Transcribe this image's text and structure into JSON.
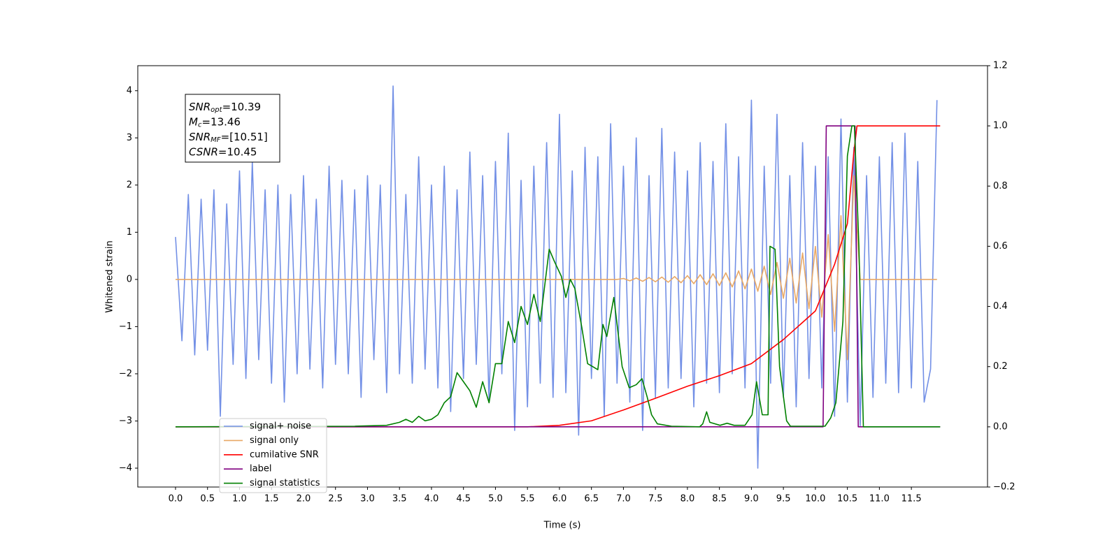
{
  "chart_data": {
    "type": "line",
    "xlabel": "Time (s)",
    "ylabel": "Whitened strain",
    "xlim": [
      -0.59,
      12.69
    ],
    "ylim": [
      -4.4,
      4.53
    ],
    "y2lim": [
      -0.2,
      1.2
    ],
    "xticks": [
      {
        "value": 0,
        "label": "0.0"
      },
      0.5,
      {
        "value": 1,
        "label": "1.0"
      },
      1.5,
      {
        "value": 2,
        "label": "2.0"
      },
      2.5,
      {
        "value": 3,
        "label": "3.0"
      },
      3.5,
      {
        "value": 4,
        "label": "4.0"
      },
      4.5,
      {
        "value": 5,
        "label": "5.0"
      },
      5.5,
      {
        "value": 6,
        "label": "6.0"
      },
      6.5,
      {
        "value": 7,
        "label": "7.0"
      },
      7.5,
      {
        "value": 8,
        "label": "8.0"
      },
      8.5,
      {
        "value": 9,
        "label": "9.0"
      },
      9.5,
      {
        "value": 10,
        "label": "10.0"
      },
      10.5,
      {
        "value": 11,
        "label": "11.0"
      },
      11.5
    ],
    "yticks": [
      {
        "value": -4,
        "label": "−4"
      },
      {
        "value": -3,
        "label": "−3"
      },
      {
        "value": -2,
        "label": "−2"
      },
      {
        "value": -1,
        "label": "−1"
      },
      0,
      1,
      2,
      3,
      4
    ],
    "y2ticks": [
      {
        "value": -0.2,
        "label": "−0.2"
      },
      {
        "value": 0,
        "label": "0.0"
      },
      0.2,
      0.4,
      0.6,
      0.8,
      {
        "value": 1,
        "label": "1.0"
      },
      1.2
    ],
    "legend": "lower left",
    "annotation": [
      {
        "symbol": "SNR",
        "subscript": "opt",
        "rest": "=10.39"
      },
      {
        "symbol": "M",
        "subscript": "c",
        "rest": "=13.46"
      },
      {
        "symbol": "SNR",
        "subscript": "MF",
        "rest": "=[10.51]"
      },
      {
        "symbol": "CSNR",
        "subscript": null,
        "rest": "=10.45"
      }
    ],
    "x": [
      0,
      0.1,
      0.2,
      0.3,
      0.4,
      0.5,
      0.6,
      0.7,
      0.8,
      0.9,
      1,
      1.1,
      1.2,
      1.3,
      1.4,
      1.5,
      1.6,
      1.7,
      1.8,
      1.9,
      2,
      2.1,
      2.2,
      2.3,
      2.4,
      2.5,
      2.6,
      2.7,
      2.8,
      2.9,
      3,
      3.1,
      3.2,
      3.3,
      3.4,
      3.5,
      3.6,
      3.7,
      3.8,
      3.9,
      4,
      4.1,
      4.2,
      4.3,
      4.4,
      4.5,
      4.6,
      4.7,
      4.8,
      4.9,
      5,
      5.1,
      5.2,
      5.3,
      5.4,
      5.5,
      5.6,
      5.7,
      5.8,
      5.9,
      6,
      6.1,
      6.2,
      6.3,
      6.4,
      6.5,
      6.6,
      6.7,
      6.8,
      6.9,
      7,
      7.1,
      7.2,
      7.3,
      7.4,
      7.5,
      7.6,
      7.7,
      7.8,
      7.9,
      8,
      8.1,
      8.2,
      8.3,
      8.4,
      8.5,
      8.6,
      8.7,
      8.8,
      8.9,
      9,
      9.1,
      9.2,
      9.3,
      9.4,
      9.5,
      9.6,
      9.7,
      9.8,
      9.9,
      10,
      10.1,
      10.2,
      10.3,
      10.4,
      10.5,
      10.6,
      10.7,
      10.8,
      10.9,
      11,
      11.1,
      11.2,
      11.3,
      11.4,
      11.5,
      11.6,
      11.7,
      11.8,
      11.9
    ],
    "series": [
      {
        "name": "signal+ noise",
        "color": "#7390e6",
        "values": [
          0.9,
          -1.3,
          1.8,
          -1.6,
          1.7,
          -1.5,
          1.9,
          -2.9,
          1.6,
          -1.8,
          2.3,
          -2.1,
          2.5,
          -1.7,
          1.9,
          -2.2,
          2.0,
          -2.6,
          1.8,
          -2.0,
          2.2,
          -1.9,
          1.7,
          -2.3,
          2.4,
          -1.8,
          2.1,
          -2.0,
          1.9,
          -2.5,
          2.2,
          -1.7,
          2.0,
          -2.4,
          4.1,
          -2.0,
          1.8,
          -2.2,
          2.6,
          -1.9,
          2.0,
          -2.3,
          2.4,
          -2.8,
          1.9,
          -2.1,
          2.7,
          -1.8,
          2.2,
          -2.6,
          2.5,
          -2.0,
          3.1,
          -3.2,
          2.1,
          -2.7,
          2.4,
          -2.2,
          2.9,
          -2.5,
          3.5,
          -2.4,
          2.3,
          -3.3,
          2.8,
          -2.1,
          2.6,
          -2.9,
          3.3,
          -2.2,
          2.4,
          -2.6,
          3.0,
          -3.2,
          2.2,
          -2.5,
          3.2,
          -2.3,
          2.7,
          -2.1,
          2.3,
          -2.7,
          2.9,
          -2.2,
          2.5,
          -2.4,
          3.3,
          -2.0,
          2.6,
          -2.3,
          3.8,
          -4.0,
          2.4,
          -2.2,
          3.5,
          -2.5,
          2.2,
          -2.7,
          2.9,
          -2.1,
          2.4,
          -2.3,
          2.6,
          -2.9,
          3.4,
          -2.6,
          2.8,
          -3.1,
          2.2,
          -2.5,
          2.6,
          -2.2,
          2.9,
          -2.4,
          3.1,
          -2.3,
          2.5,
          -2.6,
          -1.9,
          3.8
        ]
      },
      {
        "name": "signal only",
        "color": "#e8a865",
        "values": [
          0,
          0,
          0,
          0,
          0,
          0,
          0,
          0,
          0,
          0,
          0,
          0,
          0,
          0,
          0,
          0,
          0,
          0,
          0,
          0,
          0,
          0,
          0,
          0,
          0,
          0,
          0,
          0,
          0,
          0,
          0,
          0,
          0,
          0,
          0,
          0,
          0,
          0,
          0,
          0,
          0,
          0,
          0,
          0,
          0,
          0,
          0,
          0,
          0,
          0,
          0,
          0,
          0,
          0,
          0,
          0,
          0,
          0,
          0,
          0,
          0,
          0,
          0,
          0,
          0,
          0,
          0,
          0,
          0,
          0,
          0.02,
          -0.03,
          0.03,
          -0.04,
          0.04,
          -0.05,
          0.05,
          -0.06,
          0.06,
          -0.07,
          0.08,
          -0.09,
          0.1,
          -0.11,
          0.12,
          -0.13,
          0.14,
          -0.16,
          0.18,
          -0.2,
          0.22,
          -0.25,
          0.28,
          -0.32,
          0.36,
          -0.4,
          0.45,
          -0.5,
          0.56,
          -0.62,
          0.7,
          -0.8,
          0.95,
          -1.1,
          1.35,
          -1.7,
          2.2,
          0,
          0,
          0,
          0,
          0,
          0,
          0,
          0,
          0,
          0,
          0,
          0,
          0
        ]
      },
      {
        "name": "cumilative SNR",
        "color": "#ff0000",
        "axis": "y2",
        "x": [
          0,
          5.5,
          6.0,
          6.5,
          7.0,
          7.5,
          8.0,
          8.5,
          9.0,
          9.5,
          10.0,
          10.3,
          10.5,
          10.6,
          10.65,
          11.95
        ],
        "values": [
          0,
          0,
          0.005,
          0.02,
          0.056,
          0.095,
          0.135,
          0.17,
          0.21,
          0.29,
          0.385,
          0.54,
          0.675,
          0.91,
          1.0,
          1.0
        ]
      },
      {
        "name": "label",
        "color": "#800080",
        "axis": "y2",
        "x": [
          0,
          10.12,
          10.17,
          10.62,
          10.67,
          11.95
        ],
        "values": [
          0,
          0,
          1,
          1,
          0,
          0
        ]
      },
      {
        "name": "signal statistics",
        "color": "#008000",
        "axis": "y2",
        "x": [
          0,
          2.8,
          3.3,
          3.5,
          3.6,
          3.7,
          3.8,
          3.9,
          4.0,
          4.1,
          4.2,
          4.3,
          4.4,
          4.5,
          4.6,
          4.7,
          4.8,
          4.9,
          5.0,
          5.1,
          5.2,
          5.3,
          5.4,
          5.5,
          5.6,
          5.7,
          5.84,
          5.92,
          6.03,
          6.1,
          6.17,
          6.24,
          6.35,
          6.44,
          6.52,
          6.6,
          6.68,
          6.74,
          6.85,
          6.98,
          7.09,
          7.2,
          7.29,
          7.37,
          7.44,
          7.53,
          7.75,
          8.19,
          8.24,
          8.3,
          8.35,
          8.51,
          8.62,
          8.73,
          8.9,
          9.01,
          9.08,
          9.17,
          9.26,
          9.29,
          9.37,
          9.44,
          9.55,
          9.61,
          10.15,
          10.24,
          10.32,
          10.43,
          10.5,
          10.57,
          10.61,
          10.68,
          10.75,
          11.95
        ],
        "values": [
          0,
          0.002,
          0.005,
          0.015,
          0.025,
          0.015,
          0.035,
          0.02,
          0.025,
          0.04,
          0.08,
          0.1,
          0.18,
          0.15,
          0.12,
          0.065,
          0.15,
          0.08,
          0.21,
          0.21,
          0.35,
          0.28,
          0.4,
          0.34,
          0.44,
          0.35,
          0.59,
          0.55,
          0.5,
          0.43,
          0.49,
          0.46,
          0.33,
          0.21,
          0.2,
          0.19,
          0.34,
          0.3,
          0.43,
          0.2,
          0.13,
          0.14,
          0.16,
          0.1,
          0.04,
          0.01,
          0.002,
          0,
          0.01,
          0.05,
          0.015,
          0.005,
          0.012,
          0.005,
          0.005,
          0.04,
          0.15,
          0.04,
          0.04,
          0.6,
          0.59,
          0.2,
          0.02,
          0.002,
          0.002,
          0.03,
          0.08,
          0.35,
          0.9,
          1.0,
          1.0,
          0.6,
          0,
          0
        ]
      }
    ]
  }
}
